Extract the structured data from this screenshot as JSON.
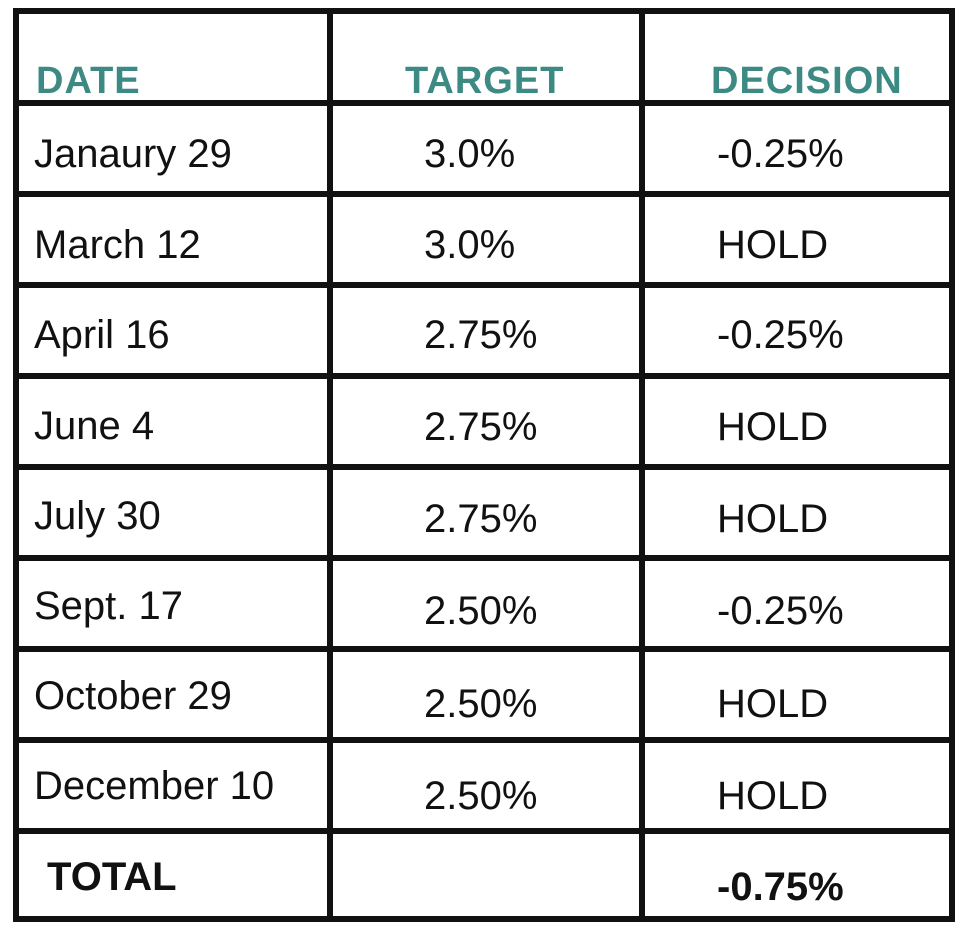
{
  "table": {
    "headers": {
      "date": "DATE",
      "target": "TARGET",
      "decision": "DECISION"
    },
    "rows": [
      {
        "date": "Janaury 29",
        "target": "3.0%",
        "decision": "-0.25%"
      },
      {
        "date": "March 12",
        "target": "3.0%",
        "decision": "HOLD"
      },
      {
        "date": "April 16",
        "target": "2.75%",
        "decision": "-0.25%"
      },
      {
        "date": "June 4",
        "target": "2.75%",
        "decision": "HOLD"
      },
      {
        "date": "July 30",
        "target": "2.75%",
        "decision": "HOLD"
      },
      {
        "date": "Sept. 17",
        "target": "2.50%",
        "decision": "-0.25%"
      },
      {
        "date": "October 29",
        "target": "2.50%",
        "decision": "HOLD"
      },
      {
        "date": "December 10",
        "target": "2.50%",
        "decision": "HOLD"
      }
    ],
    "total": {
      "label": "TOTAL",
      "target": "",
      "decision": "-0.75%"
    }
  },
  "colors": {
    "header_text": "#3c8a83",
    "border": "#111111",
    "text": "#111111"
  }
}
